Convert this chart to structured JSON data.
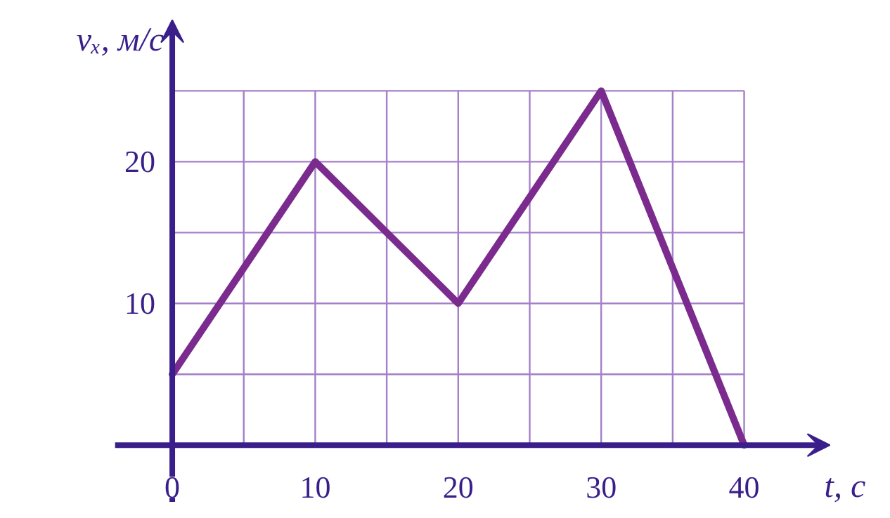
{
  "chart_data": {
    "type": "line",
    "xlabel": "t, с",
    "ylabel": "vₓ, м/с",
    "x": [
      0,
      10,
      20,
      30,
      40
    ],
    "series": [
      {
        "color": "#7b2a8e",
        "values": [
          5,
          20,
          10,
          25,
          0
        ]
      }
    ],
    "xlim": [
      -4,
      46
    ],
    "ylim": [
      -4,
      30
    ],
    "xticks": [
      0,
      {
        "value": 5,
        "label": null
      },
      10,
      {
        "value": 15,
        "label": null
      },
      20,
      {
        "value": 25,
        "label": null
      },
      30,
      {
        "value": 35,
        "label": null
      },
      40
    ],
    "yticks": [
      {
        "value": 5,
        "label": null
      },
      10,
      {
        "value": 15,
        "label": null
      },
      20,
      {
        "value": 25,
        "label": null
      }
    ],
    "grid": true,
    "marker": "none",
    "line_style": "solid"
  }
}
